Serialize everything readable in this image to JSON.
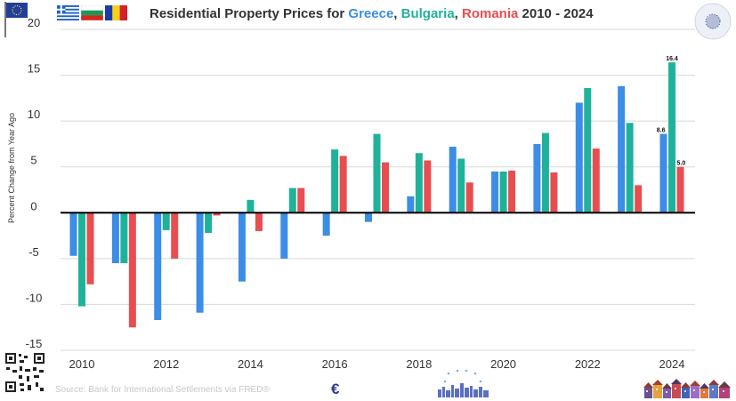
{
  "header": {
    "title_prefix": "Residential Property Prices for ",
    "sep1": ", ",
    "sep2": ", ",
    "title_suffix": " 2010 - 2024"
  },
  "footer": {
    "source": "Source: Bank for International Settlements via FRED®",
    "euro_symbol": "€"
  },
  "colors": {
    "Greece": "#3b8de6",
    "Bulgaria": "#1fb29a",
    "Romania": "#e84e50",
    "text": "#333333",
    "grid": "#d8d8d8",
    "zero_line": "#000000"
  },
  "icons": [
    "eu-flag-icon",
    "greece-flag-icon",
    "bulgaria-flag-icon",
    "romania-flag-icon",
    "eu-map-icon",
    "qr-code-icon",
    "euro-icon",
    "eu-city-skyline-icon",
    "houses-icon"
  ],
  "chart_data": {
    "type": "bar",
    "title": "Residential Property Prices for Greece, Bulgaria, Romania 2010 - 2024",
    "xlabel": "",
    "ylabel": "Percent Change from Year Ago",
    "categories": [
      "2010",
      "2011",
      "2012",
      "2013",
      "2014",
      "2015",
      "2016",
      "2017",
      "2018",
      "2019",
      "2020",
      "2021",
      "2022",
      "2023",
      "2024"
    ],
    "series": [
      {
        "name": "Greece",
        "values": [
          -4.7,
          -5.5,
          -11.7,
          -10.9,
          -7.5,
          -5.0,
          -2.5,
          -1.0,
          1.8,
          7.2,
          4.5,
          7.5,
          12.0,
          13.8,
          8.6
        ]
      },
      {
        "name": "Bulgaria",
        "values": [
          -10.2,
          -5.5,
          -1.9,
          -2.2,
          1.4,
          2.7,
          6.9,
          8.6,
          6.5,
          5.9,
          4.5,
          8.7,
          13.6,
          9.8,
          16.4
        ]
      },
      {
        "name": "Romania",
        "values": [
          -7.8,
          -12.5,
          -5.0,
          -0.3,
          -2.0,
          2.7,
          6.2,
          5.5,
          5.7,
          3.3,
          4.6,
          4.4,
          7.0,
          3.0,
          5.0
        ]
      }
    ],
    "ylim": [
      -15,
      20
    ],
    "yticks": [
      "20",
      "15",
      "10",
      "5",
      "0",
      "-5",
      "-10",
      "-15"
    ],
    "xticks": [
      "2010",
      "2012",
      "2014",
      "2016",
      "2018",
      "2020",
      "2022",
      "2024"
    ],
    "data_labels": [
      {
        "series": "Greece",
        "category": "2024",
        "text": "8.6"
      },
      {
        "series": "Bulgaria",
        "category": "2024",
        "text": "16.4"
      },
      {
        "series": "Romania",
        "category": "2024",
        "text": "5.0"
      }
    ],
    "grid": true,
    "legend": "in title"
  }
}
